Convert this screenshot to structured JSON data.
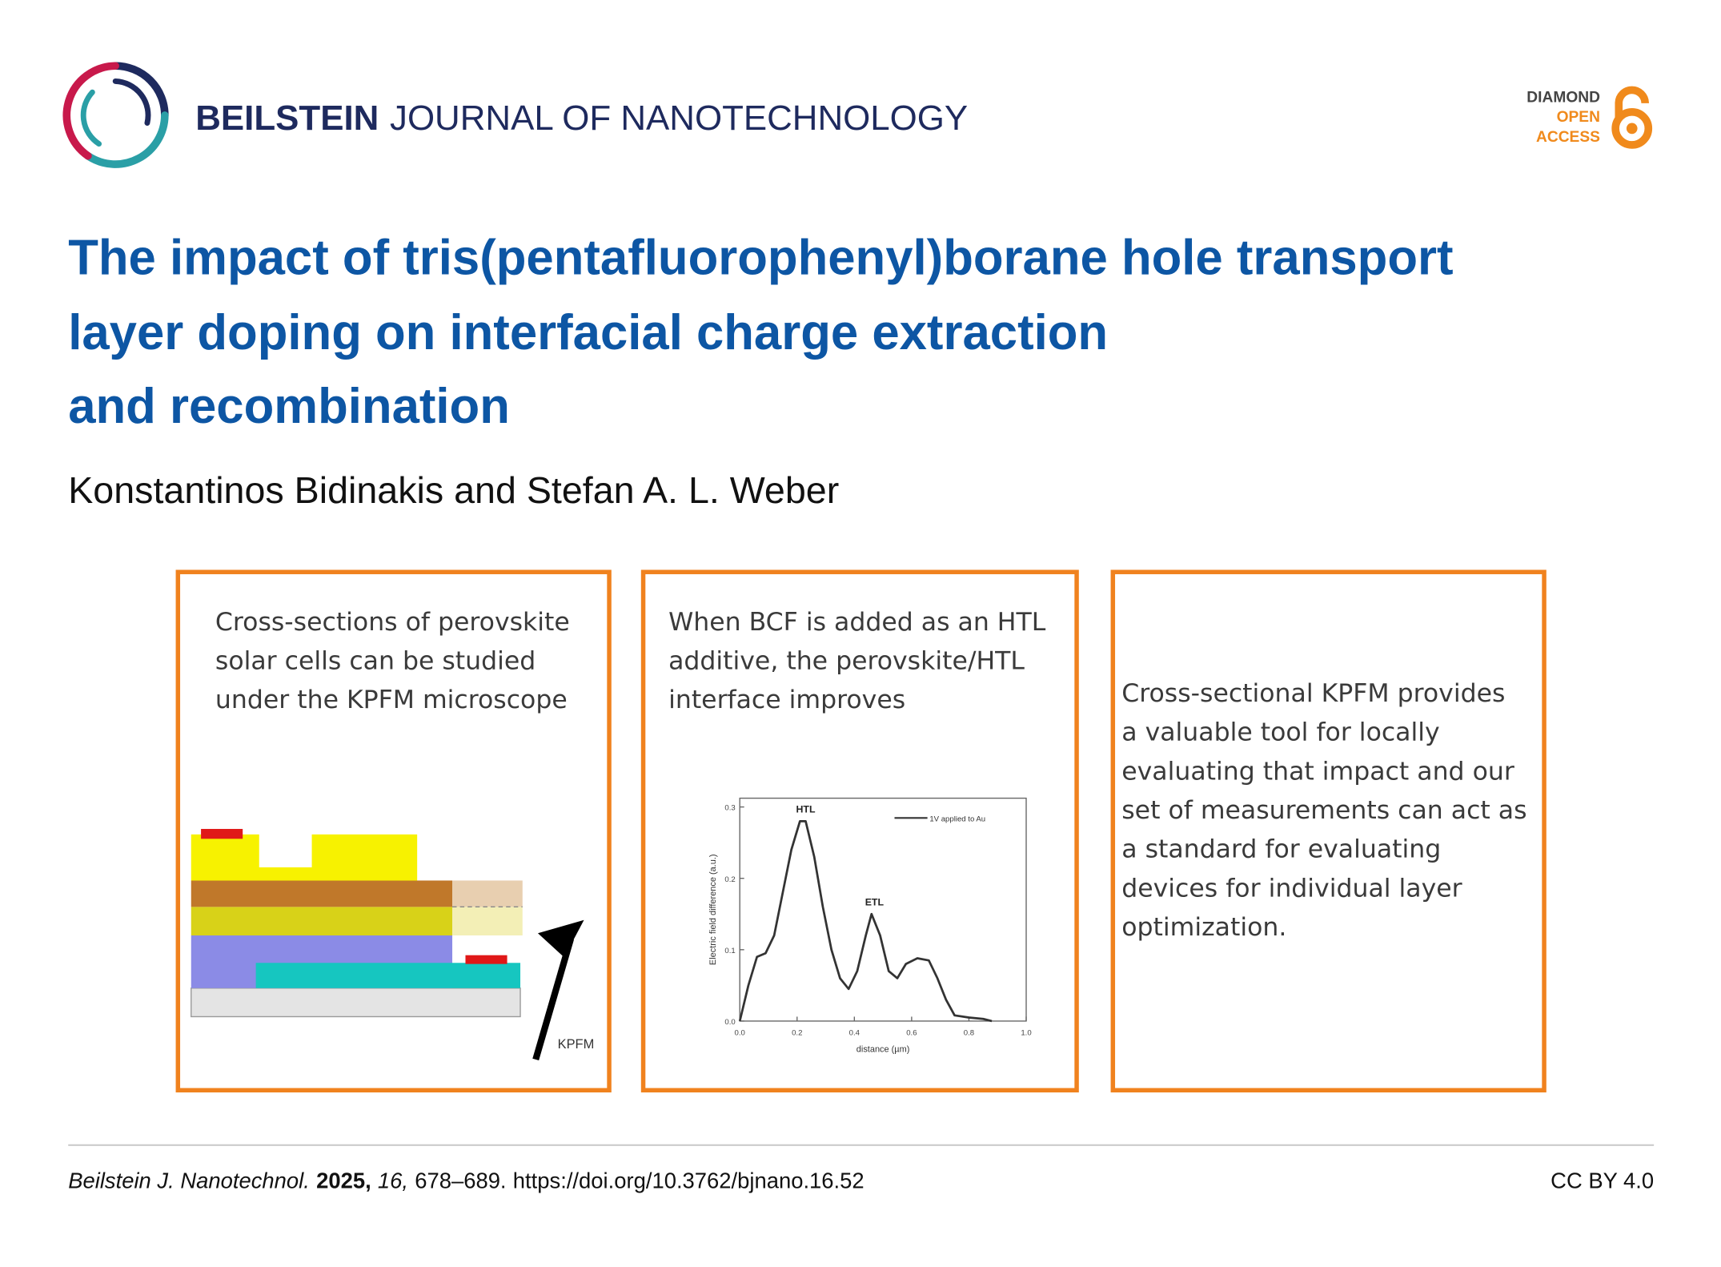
{
  "header": {
    "journal_bold": "BEILSTEIN",
    "journal_rest": "JOURNAL OF NANOTECHNOLOGY",
    "badge": [
      "DIAMOND",
      "OPEN",
      "ACCESS"
    ]
  },
  "title": [
    "The impact of tris(pentafluorophenyl)borane hole transport",
    "layer doping on interfacial charge extraction",
    "and recombination"
  ],
  "authors": "Konstantinos Bidinakis and Stefan A. L. Weber",
  "panels": [
    {
      "lines": [
        "Cross-sections of perovskite",
        "solar cells can be studied",
        "under the KPFM microscope"
      ],
      "diagram_label": "KPFM"
    },
    {
      "lines": [
        "When BCF is added as an HTL",
        "additive, the perovskite/HTL",
        "interface improves"
      ]
    },
    {
      "lines": [
        "Cross-sectional KPFM provides",
        "a valuable tool for locally",
        "evaluating that impact and our",
        "set of measurements can act as",
        "a standard for evaluating",
        "devices for individual layer",
        "optimization."
      ]
    }
  ],
  "chart_data": {
    "type": "line",
    "xlabel": "distance (µm)",
    "ylabel": "Electric field difference (a.u.)",
    "x": [
      0.0,
      0.03,
      0.06,
      0.09,
      0.12,
      0.15,
      0.18,
      0.21,
      0.23,
      0.26,
      0.29,
      0.32,
      0.35,
      0.38,
      0.41,
      0.44,
      0.46,
      0.49,
      0.52,
      0.55,
      0.58,
      0.62,
      0.66,
      0.69,
      0.72,
      0.75,
      0.8,
      0.85,
      0.88
    ],
    "series": [
      {
        "name": "1V applied to Au",
        "color": "#333333",
        "values": [
          0.0,
          0.05,
          0.09,
          0.095,
          0.12,
          0.18,
          0.24,
          0.28,
          0.28,
          0.23,
          0.16,
          0.1,
          0.06,
          0.045,
          0.07,
          0.12,
          0.15,
          0.12,
          0.07,
          0.06,
          0.08,
          0.088,
          0.085,
          0.06,
          0.03,
          0.008,
          0.005,
          0.003,
          0.0
        ]
      }
    ],
    "annotations": [
      {
        "text": "HTL",
        "x": 0.23,
        "y": 0.28
      },
      {
        "text": "ETL",
        "x": 0.47,
        "y": 0.15
      }
    ],
    "xlim": [
      0,
      1
    ],
    "ylim": [
      0,
      0.3
    ],
    "xticks": [
      {
        "value": 0,
        "label": "0.0"
      },
      0.2,
      0.4,
      0.6,
      0.8,
      {
        "value": 1,
        "label": "1.0"
      }
    ],
    "yticks": [
      {
        "value": 0,
        "label": "0.0"
      },
      0.1,
      0.2,
      0.3
    ]
  },
  "footer": {
    "journal": "Beilstein J. Nanotechnol.",
    "year": "2025,",
    "volume": "16,",
    "pages": "678–689.",
    "doi": "https://doi.org/10.3762/bjnano.16.52",
    "license": "CC BY 4.0"
  }
}
